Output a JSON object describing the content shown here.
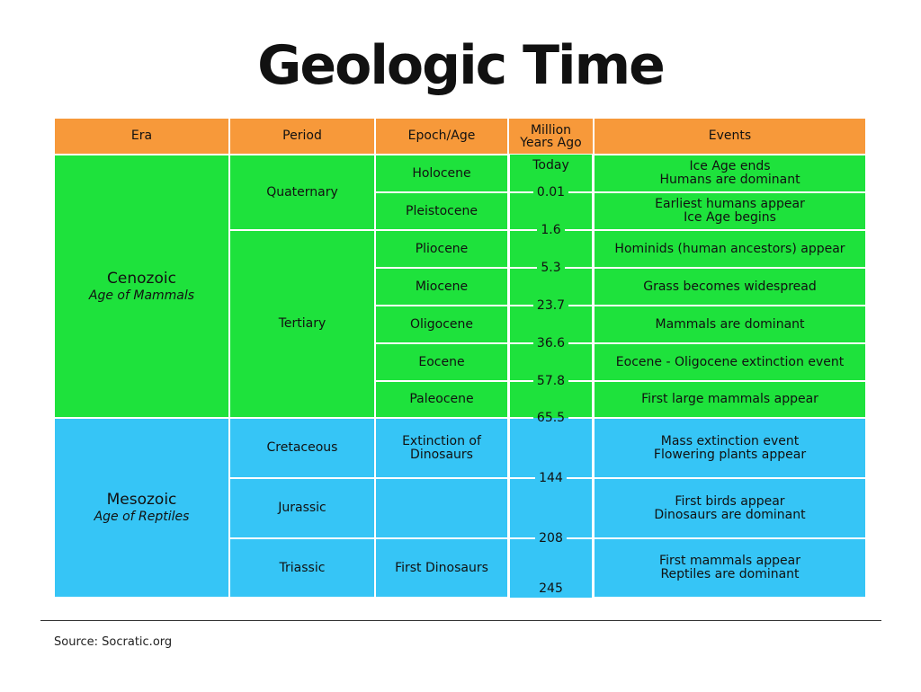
{
  "header": {
    "title": "Geologic Time"
  },
  "table": {
    "columns": [
      "Era",
      "Period",
      "Epoch/Age",
      "Million Years Ago",
      "Events"
    ],
    "eras": [
      {
        "name": "Cenozoic",
        "subtitle": "Age of Mammals"
      },
      {
        "name": "Mesozoic",
        "subtitle": "Age of Reptiles"
      }
    ],
    "periods": [
      "Quaternary",
      "Tertiary",
      "Cretaceous",
      "Jurassic",
      "Triassic"
    ],
    "rows": [
      {
        "epoch": "Holocene",
        "events": [
          "Ice Age ends",
          "Humans are dominant"
        ]
      },
      {
        "epoch": "Pleistocene",
        "events": [
          "Earliest humans appear",
          "Ice Age begins"
        ]
      },
      {
        "epoch": "Pliocene",
        "events": [
          "Hominids (human ancestors) appear"
        ]
      },
      {
        "epoch": "Miocene",
        "events": [
          "Grass becomes widespread"
        ]
      },
      {
        "epoch": "Oligocene",
        "events": [
          "Mammals are dominant"
        ]
      },
      {
        "epoch": "Eocene",
        "events": [
          "Eocene - Oligocene extinction event"
        ]
      },
      {
        "epoch": "Paleocene",
        "events": [
          "First large mammals appear"
        ]
      },
      {
        "epoch": "Extinction of Dinosaurs",
        "events": [
          "Mass extinction event",
          "Flowering plants appear"
        ]
      },
      {
        "events": [
          "First birds appear",
          "Dinosaurs are dominant"
        ]
      },
      {
        "epoch": "First Dinosaurs",
        "events": [
          "First mammals appear",
          "Reptiles are dominant"
        ]
      }
    ],
    "mya": [
      "Today",
      "0.01",
      "1.6",
      "5.3",
      "23.7",
      "36.6",
      "57.8",
      "65.5",
      "144",
      "208",
      "245"
    ]
  },
  "footer": {
    "source": "Source: Socratic.org"
  }
}
